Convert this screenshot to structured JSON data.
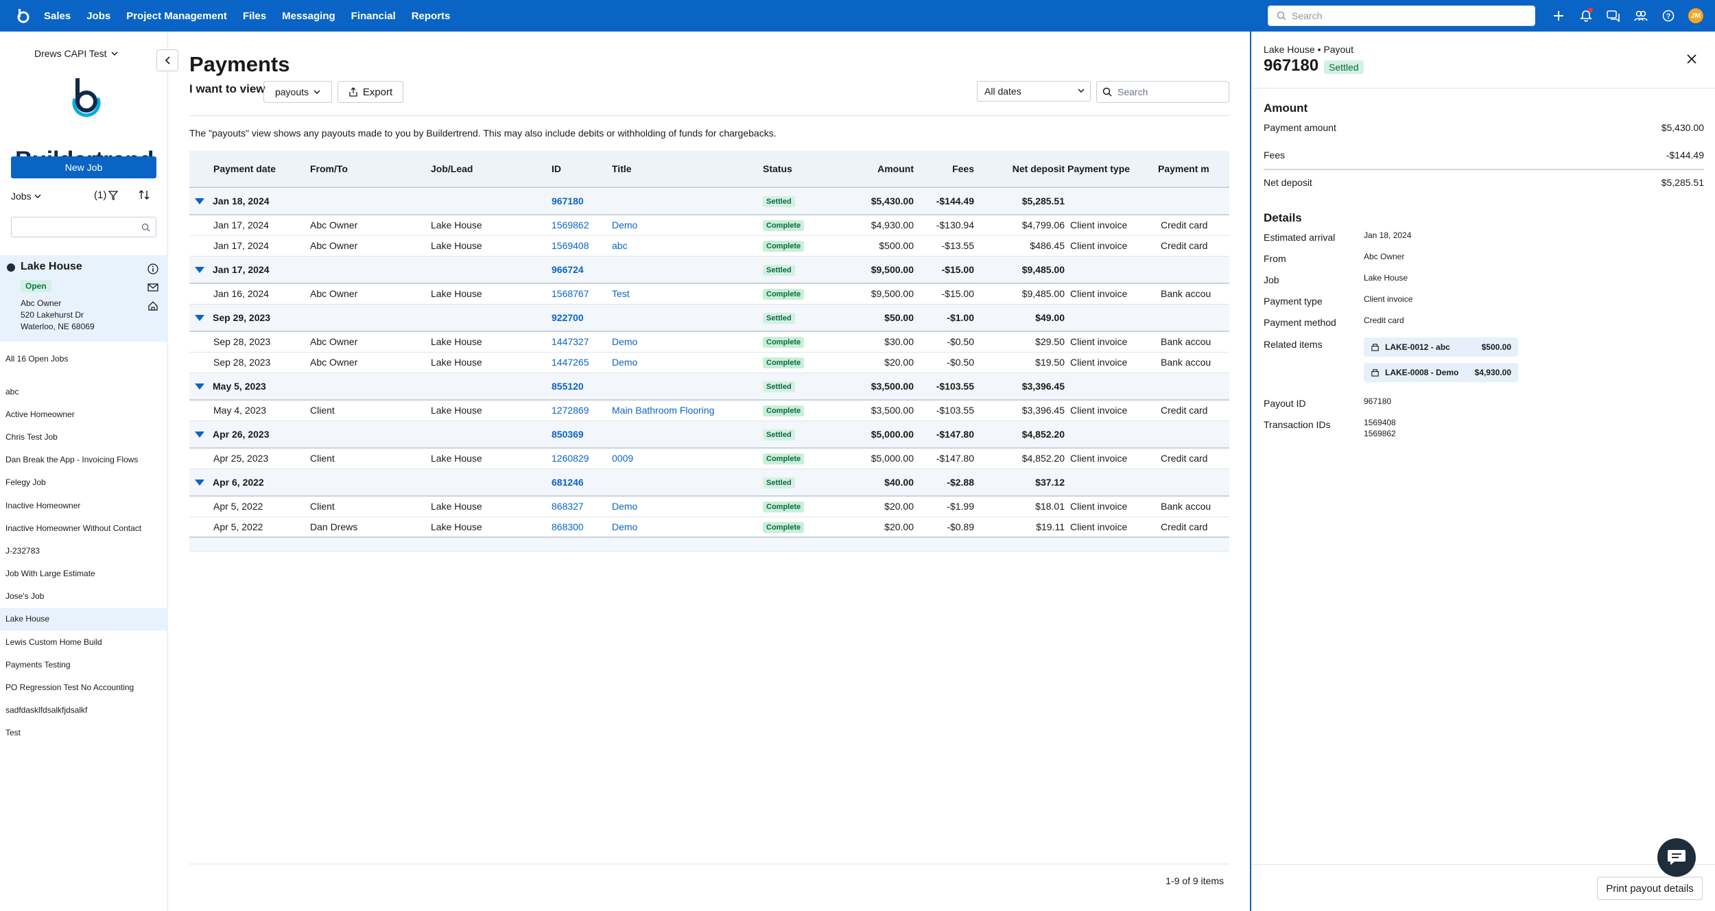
{
  "topnav": {
    "items": [
      "Sales",
      "Jobs",
      "Project Management",
      "Files",
      "Messaging",
      "Financial",
      "Reports"
    ],
    "search_placeholder": "Search",
    "avatar_initials": "JM"
  },
  "sidebar": {
    "account": "Drews CAPI Test",
    "brand": "Buildertrend",
    "new_job": "New Job",
    "jobs_dropdown": "Jobs",
    "filter_count": "(1)",
    "selected_job": {
      "name": "Lake House",
      "status": "Open",
      "owner": "Abc Owner",
      "street": "520 Lakehurst Dr",
      "city": "Waterloo, NE 68069"
    },
    "all_jobs": "All 16 Open Jobs",
    "jobs": [
      "abc",
      "Active Homeowner",
      "Chris Test Job",
      "Dan Break the App - Invoicing Flows",
      "Felegy Job",
      "Inactive Homeowner",
      "Inactive Homeowner Without Contact",
      "J-232783",
      "Job With Large Estimate",
      "Jose's Job",
      "Lake House",
      "Lewis Custom Home Build",
      "Payments Testing",
      "PO Regression Test No Accounting",
      "sadfdasklfdsalkfjdsalkf",
      "Test"
    ]
  },
  "main": {
    "title": "Payments",
    "i_want_to_view": "I want to view",
    "view_value": "payouts",
    "export": "Export",
    "dates": "All dates",
    "search_placeholder": "Search",
    "description": "The \"payouts\" view shows any payouts made to you by Buildertrend. This may also include debits or withholding of funds for chargebacks.",
    "columns": [
      "Payment date",
      "From/To",
      "Job/Lead",
      "ID",
      "Title",
      "Status",
      "Amount",
      "Fees",
      "Net deposit",
      "Payment type",
      "Payment m"
    ],
    "groups": [
      {
        "date": "Jan 18, 2024",
        "id": "967180",
        "status": "Settled",
        "amount": "$5,430.00",
        "fees": "-$144.49",
        "net": "$5,285.51",
        "rows": [
          {
            "date": "Jan 17, 2024",
            "from": "Abc Owner",
            "job": "Lake House",
            "id": "1569862",
            "title": "Demo",
            "status": "Complete",
            "amount": "$4,930.00",
            "fees": "-$130.94",
            "net": "$4,799.06",
            "type": "Client invoice",
            "method": "Credit card"
          },
          {
            "date": "Jan 17, 2024",
            "from": "Abc Owner",
            "job": "Lake House",
            "id": "1569408",
            "title": "abc",
            "status": "Complete",
            "amount": "$500.00",
            "fees": "-$13.55",
            "net": "$486.45",
            "type": "Client invoice",
            "method": "Credit card"
          }
        ]
      },
      {
        "date": "Jan 17, 2024",
        "id": "966724",
        "status": "Settled",
        "amount": "$9,500.00",
        "fees": "-$15.00",
        "net": "$9,485.00",
        "rows": [
          {
            "date": "Jan 16, 2024",
            "from": "Abc Owner",
            "job": "Lake House",
            "id": "1568767",
            "title": "Test",
            "status": "Complete",
            "amount": "$9,500.00",
            "fees": "-$15.00",
            "net": "$9,485.00",
            "type": "Client invoice",
            "method": "Bank accou"
          }
        ]
      },
      {
        "date": "Sep 29, 2023",
        "id": "922700",
        "status": "Settled",
        "amount": "$50.00",
        "fees": "-$1.00",
        "net": "$49.00",
        "rows": [
          {
            "date": "Sep 28, 2023",
            "from": "Abc Owner",
            "job": "Lake House",
            "id": "1447327",
            "title": "Demo",
            "status": "Complete",
            "amount": "$30.00",
            "fees": "-$0.50",
            "net": "$29.50",
            "type": "Client invoice",
            "method": "Bank accou"
          },
          {
            "date": "Sep 28, 2023",
            "from": "Abc Owner",
            "job": "Lake House",
            "id": "1447265",
            "title": "Demo",
            "status": "Complete",
            "amount": "$20.00",
            "fees": "-$0.50",
            "net": "$19.50",
            "type": "Client invoice",
            "method": "Bank accou"
          }
        ]
      },
      {
        "date": "May 5, 2023",
        "id": "855120",
        "status": "Settled",
        "amount": "$3,500.00",
        "fees": "-$103.55",
        "net": "$3,396.45",
        "rows": [
          {
            "date": "May 4, 2023",
            "from": "Client",
            "job": "Lake House",
            "id": "1272869",
            "title": "Main Bathroom Flooring",
            "status": "Complete",
            "amount": "$3,500.00",
            "fees": "-$103.55",
            "net": "$3,396.45",
            "type": "Client invoice",
            "method": "Credit card"
          }
        ]
      },
      {
        "date": "Apr 26, 2023",
        "id": "850369",
        "status": "Settled",
        "amount": "$5,000.00",
        "fees": "-$147.80",
        "net": "$4,852.20",
        "rows": [
          {
            "date": "Apr 25, 2023",
            "from": "Client",
            "job": "Lake House",
            "id": "1260829",
            "title": "0009",
            "status": "Complete",
            "amount": "$5,000.00",
            "fees": "-$147.80",
            "net": "$4,852.20",
            "type": "Client invoice",
            "method": "Credit card"
          }
        ]
      },
      {
        "date": "Apr 6, 2022",
        "id": "681246",
        "status": "Settled",
        "amount": "$40.00",
        "fees": "-$2.88",
        "net": "$37.12",
        "rows": [
          {
            "date": "Apr 5, 2022",
            "from": "Client",
            "job": "Lake House",
            "id": "868327",
            "title": "Demo",
            "status": "Complete",
            "amount": "$20.00",
            "fees": "-$1.99",
            "net": "$18.01",
            "type": "Client invoice",
            "method": "Bank accou"
          },
          {
            "date": "Apr 5, 2022",
            "from": "Dan Drews",
            "job": "Lake House",
            "id": "868300",
            "title": "Demo",
            "status": "Complete",
            "amount": "$20.00",
            "fees": "-$0.89",
            "net": "$19.11",
            "type": "Client invoice",
            "method": "Credit card"
          }
        ]
      }
    ],
    "pager": "1-9 of 9 items"
  },
  "panel": {
    "crumb": "Lake House • Payout",
    "id": "967180",
    "status": "Settled",
    "amount_title": "Amount",
    "payment_amount_label": "Payment amount",
    "payment_amount": "$5,430.00",
    "fees_label": "Fees",
    "fees": "-$144.49",
    "net_label": "Net deposit",
    "net": "$5,285.51",
    "details_title": "Details",
    "details": [
      {
        "label": "Estimated arrival",
        "value": "Jan 18, 2024"
      },
      {
        "label": "From",
        "value": "Abc Owner"
      },
      {
        "label": "Job",
        "value": "Lake House"
      },
      {
        "label": "Payment type",
        "value": "Client invoice"
      },
      {
        "label": "Payment method",
        "value": "Credit card"
      }
    ],
    "related_label": "Related items",
    "related": [
      {
        "name": "LAKE-0012 - abc",
        "amount": "$500.00"
      },
      {
        "name": "LAKE-0008 - Demo",
        "amount": "$4,930.00"
      }
    ],
    "payout_id_label": "Payout ID",
    "payout_id": "967180",
    "transaction_label": "Transaction IDs",
    "transactions": [
      "1569408",
      "1569862"
    ],
    "print": "Print payout details"
  }
}
